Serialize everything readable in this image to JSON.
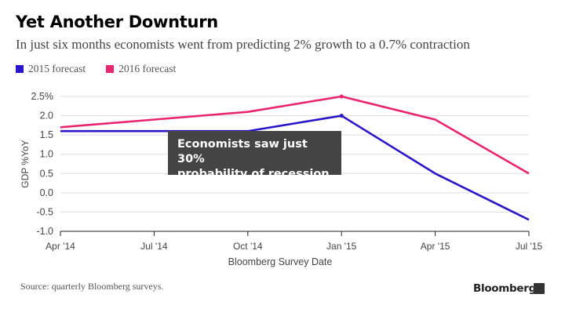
{
  "header": {
    "title": "Yet Another Downturn",
    "subtitle": "In just six months economists went from predicting 2% growth to a 0.7% contraction"
  },
  "legend": [
    {
      "label": "2015 forecast",
      "color": "#2a16c8"
    },
    {
      "label": "2016 forecast",
      "color": "#e8266e"
    }
  ],
  "annotation": {
    "line1": "Economists saw just 30%",
    "line2": "probability of recession"
  },
  "footer": {
    "source": "Source: quarterly Bloomberg surveys.",
    "brand": "Bloomberg"
  },
  "chart_data": {
    "type": "line",
    "title": "Yet Another Downturn",
    "xlabel": "Bloomberg Survey Date",
    "ylabel": "GDP %YoY",
    "categories": [
      "Apr '14",
      "Jul '14",
      "Oct '14",
      "Jan '15",
      "Apr '15",
      "Jul '15"
    ],
    "ylim": [
      -1.0,
      2.5
    ],
    "yticks": [
      2.5,
      2.0,
      1.5,
      1.0,
      0.5,
      0.0,
      -0.5,
      -1.0
    ],
    "ytick_labels": [
      "2.5%",
      "2.0",
      "1.5",
      "1.0",
      "0.5",
      "0.0",
      "-0.5",
      "-1.0"
    ],
    "series": [
      {
        "name": "2015 forecast",
        "color": "#2a16c8",
        "values": [
          1.6,
          1.6,
          1.6,
          2.0,
          0.5,
          -0.7
        ]
      },
      {
        "name": "2016 forecast",
        "color": "#e8266e",
        "values": [
          1.7,
          1.9,
          2.1,
          2.5,
          1.9,
          0.5
        ]
      }
    ]
  }
}
